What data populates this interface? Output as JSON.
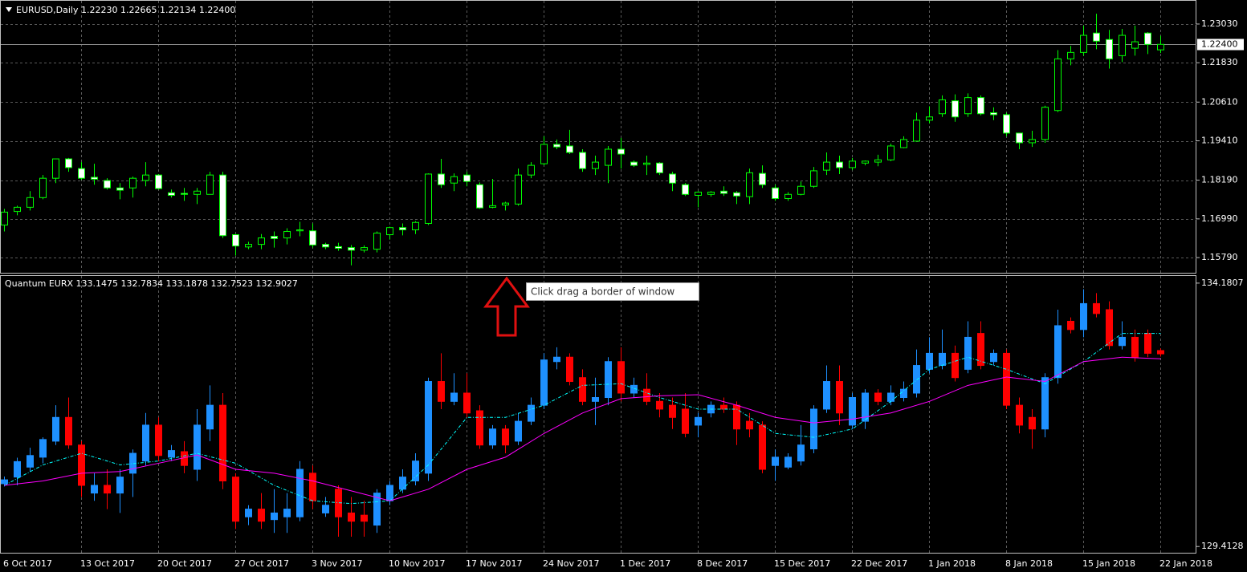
{
  "chart_data": [
    {
      "type": "candlestick",
      "title": "EURUSD,Daily  1.22230 1.22665 1.22134 1.22400",
      "up_color": "#00ff00",
      "down_color": "#ffffff",
      "wick_color": "#00ff00",
      "grid": true,
      "ylim": [
        1.1532,
        1.2375
      ],
      "yticks": [
        {
          "value": 1.2303,
          "label": "1.23030"
        },
        {
          "value": 1.2183,
          "label": "1.21830"
        },
        {
          "value": 1.2061,
          "label": "1.20610"
        },
        {
          "value": 1.1941,
          "label": "1.19410"
        },
        {
          "value": 1.1819,
          "label": "1.18190"
        },
        {
          "value": 1.1699,
          "label": "1.16990"
        },
        {
          "value": 1.1579,
          "label": "1.15790"
        }
      ],
      "last_price": {
        "value": 1.224,
        "label": "1.22400"
      },
      "open": [
        1.168,
        1.1722,
        1.1735,
        1.1765,
        1.1825,
        1.1885,
        1.1855,
        1.1828,
        1.1818,
        1.1795,
        1.1795,
        1.1818,
        1.1835,
        1.178,
        1.1778,
        1.1775,
        1.1775,
        1.1835,
        1.165,
        1.1612,
        1.162,
        1.1645,
        1.164,
        1.1662,
        1.1662,
        1.162,
        1.1613,
        1.161,
        1.1602,
        1.1605,
        1.165,
        1.1672,
        1.1665,
        1.1685,
        1.1838,
        1.181,
        1.1835,
        1.1805,
        1.1735,
        1.1742,
        1.1745,
        1.1835,
        1.187,
        1.193,
        1.1925,
        1.1905,
        1.1855,
        1.1865,
        1.1915,
        1.1875,
        1.1868,
        1.1872,
        1.1838,
        1.1805,
        1.1772,
        1.1775,
        1.1785,
        1.178,
        1.1768,
        1.184,
        1.1795,
        1.1762,
        1.1775,
        1.18,
        1.185,
        1.1875,
        1.1858,
        1.1872,
        1.1875,
        1.1882,
        1.192,
        1.194,
        1.2005,
        1.2025,
        1.2065,
        1.2025,
        1.2075,
        1.2028,
        1.2022,
        1.1965,
        1.1935,
        1.1945,
        1.2035,
        1.2195,
        1.2215,
        1.2275,
        1.2255,
        1.2205,
        1.2228,
        1.2275,
        1.2223
      ],
      "high": [
        1.173,
        1.174,
        1.1785,
        1.1835,
        1.1885,
        1.1888,
        1.1875,
        1.187,
        1.1825,
        1.181,
        1.183,
        1.1875,
        1.1838,
        1.179,
        1.1795,
        1.1795,
        1.1845,
        1.1845,
        1.1652,
        1.1628,
        1.1652,
        1.166,
        1.167,
        1.169,
        1.1685,
        1.1625,
        1.1625,
        1.1618,
        1.1617,
        1.166,
        1.1675,
        1.1685,
        1.1692,
        1.184,
        1.1885,
        1.184,
        1.1845,
        1.1812,
        1.1823,
        1.1752,
        1.1855,
        1.1875,
        1.1955,
        1.1945,
        1.1975,
        1.1915,
        1.1895,
        1.1925,
        1.195,
        1.188,
        1.1895,
        1.1875,
        1.1845,
        1.181,
        1.1785,
        1.1785,
        1.18,
        1.1785,
        1.1855,
        1.1865,
        1.1805,
        1.1782,
        1.1815,
        1.186,
        1.1905,
        1.1895,
        1.1888,
        1.188,
        1.1898,
        1.1932,
        1.1955,
        1.2028,
        1.2048,
        1.2082,
        1.2085,
        1.2088,
        1.2082,
        1.2045,
        1.2028,
        1.1965,
        1.1972,
        1.205,
        1.2222,
        1.2235,
        1.2298,
        1.2335,
        1.2285,
        1.2288,
        1.2298,
        1.2278,
        1.22665
      ],
      "low": [
        1.166,
        1.171,
        1.1725,
        1.176,
        1.181,
        1.1845,
        1.182,
        1.1805,
        1.179,
        1.176,
        1.1765,
        1.18,
        1.179,
        1.1765,
        1.1755,
        1.1745,
        1.1775,
        1.164,
        1.1585,
        1.1605,
        1.1605,
        1.161,
        1.162,
        1.1645,
        1.161,
        1.1605,
        1.16,
        1.1555,
        1.1595,
        1.1595,
        1.1635,
        1.1648,
        1.1652,
        1.168,
        1.1795,
        1.1785,
        1.18,
        1.173,
        1.1732,
        1.1725,
        1.174,
        1.1825,
        1.1865,
        1.1915,
        1.19,
        1.1845,
        1.1835,
        1.181,
        1.1855,
        1.186,
        1.1835,
        1.1835,
        1.1785,
        1.177,
        1.1735,
        1.1768,
        1.177,
        1.1745,
        1.1745,
        1.1795,
        1.1755,
        1.1755,
        1.1772,
        1.1795,
        1.1835,
        1.1838,
        1.185,
        1.1865,
        1.1862,
        1.1878,
        1.1918,
        1.1938,
        1.1995,
        1.2015,
        1.2,
        1.2015,
        1.202,
        1.2005,
        1.1955,
        1.1915,
        1.1922,
        1.1935,
        1.203,
        1.2175,
        1.2205,
        1.2225,
        1.2165,
        1.2185,
        1.2205,
        1.221,
        1.22134
      ],
      "close": [
        1.172,
        1.1735,
        1.1765,
        1.1825,
        1.1885,
        1.1858,
        1.1825,
        1.1822,
        1.1795,
        1.1788,
        1.1825,
        1.1835,
        1.1793,
        1.1772,
        1.1775,
        1.1785,
        1.1835,
        1.1647,
        1.1615,
        1.162,
        1.164,
        1.1638,
        1.166,
        1.1665,
        1.1618,
        1.1612,
        1.1608,
        1.1602,
        1.161,
        1.1655,
        1.1672,
        1.1665,
        1.1688,
        1.1838,
        1.1805,
        1.183,
        1.1815,
        1.1733,
        1.174,
        1.1748,
        1.1835,
        1.1865,
        1.193,
        1.1922,
        1.1905,
        1.1855,
        1.1875,
        1.1915,
        1.19,
        1.1865,
        1.1872,
        1.1842,
        1.181,
        1.1775,
        1.1782,
        1.1782,
        1.1778,
        1.177,
        1.1842,
        1.1805,
        1.1762,
        1.1775,
        1.18,
        1.1848,
        1.1875,
        1.1858,
        1.1878,
        1.1878,
        1.1882,
        1.1925,
        1.1945,
        1.2005,
        1.2015,
        1.2068,
        1.2015,
        1.2075,
        1.2025,
        1.2022,
        1.1965,
        1.1935,
        1.1945,
        1.2045,
        1.2195,
        1.2215,
        1.2268,
        1.225,
        1.2195,
        1.2268,
        1.2248,
        1.224,
        1.224
      ]
    },
    {
      "type": "candlestick",
      "title": "Quantum EURX 133.1475 132.7834 133.1878 132.7523 132.9027",
      "up_color": "#1e90ff",
      "down_color": "#ff0000",
      "ylim": [
        129.3,
        134.31
      ],
      "yticks": [
        134.1807,
        129.4128
      ],
      "categories": [
        "6 Oct 2017",
        null,
        null,
        null,
        null,
        null,
        "13 Oct 2017",
        null,
        null,
        null,
        null,
        null,
        "20 Oct 2017",
        null,
        null,
        null,
        null,
        null,
        "27 Oct 2017",
        null,
        null,
        null,
        null,
        null,
        "3 Nov 2017",
        null,
        null,
        null,
        null,
        null,
        "10 Nov 2017",
        null,
        null,
        null,
        null,
        null,
        "17 Nov 2017",
        null,
        null,
        null,
        null,
        null,
        "24 Nov 2017",
        null,
        null,
        null,
        null,
        null,
        "1 Dec 2017",
        null,
        null,
        null,
        null,
        null,
        "8 Dec 2017",
        null,
        null,
        null,
        null,
        null,
        "15 Dec 2017",
        null,
        null,
        null,
        null,
        null,
        "22 Dec 2017",
        null,
        null,
        null,
        null,
        null,
        "1 Jan 2018",
        null,
        null,
        null,
        null,
        null,
        "8 Jan 2018",
        null,
        null,
        null,
        null,
        null,
        "15 Jan 2018",
        null,
        null,
        null,
        null,
        null,
        "22 Jan 2018"
      ],
      "open": [
        130.55,
        130.67,
        130.85,
        131.03,
        131.32,
        131.75,
        131.25,
        130.38,
        130.52,
        130.38,
        130.74,
        130.96,
        131.61,
        131.03,
        131.13,
        130.81,
        131.54,
        131.97,
        130.67,
        129.95,
        130.09,
        129.9,
        129.95,
        129.95,
        130.74,
        130.02,
        130.45,
        130.02,
        129.98,
        129.8,
        130.24,
        130.45,
        130.6,
        130.74,
        132.4,
        132.04,
        132.19,
        131.87,
        131.25,
        131.54,
        131.32,
        131.68,
        131.97,
        132.76,
        132.84,
        132.47,
        132.04,
        132.11,
        132.76,
        132.19,
        132.26,
        132.04,
        131.97,
        131.9,
        131.61,
        131.83,
        131.97,
        131.97,
        131.68,
        131.61,
        130.88,
        130.85,
        130.96,
        131.18,
        131.9,
        132.4,
        131.61,
        131.68,
        132.19,
        132.04,
        132.11,
        132.19,
        132.62,
        132.69,
        132.91,
        132.62,
        133.27,
        132.76,
        132.91,
        131.97,
        131.75,
        131.54,
        132.47,
        133.49,
        133.34,
        133.81,
        133.7,
        133.05,
        133.2,
        133.27,
        132.96
      ],
      "high": [
        130.68,
        131.02,
        131.2,
        131.39,
        131.97,
        132.11,
        131.32,
        130.74,
        130.81,
        130.81,
        131.17,
        131.83,
        131.75,
        131.25,
        131.32,
        131.9,
        132.33,
        132.19,
        130.74,
        130.16,
        130.38,
        130.45,
        130.38,
        130.96,
        130.88,
        130.31,
        130.52,
        130.31,
        130.24,
        130.45,
        130.6,
        130.81,
        131.1,
        132.47,
        132.91,
        132.55,
        132.55,
        131.97,
        131.61,
        131.61,
        131.83,
        132.11,
        132.91,
        133.02,
        132.91,
        132.62,
        132.47,
        132.84,
        133.02,
        132.47,
        132.55,
        132.19,
        132.11,
        132.19,
        131.83,
        132.04,
        132.11,
        132.04,
        131.83,
        131.68,
        131.17,
        131.1,
        131.61,
        131.97,
        132.69,
        132.69,
        132.19,
        132.26,
        132.26,
        132.33,
        132.4,
        132.98,
        133.2,
        133.34,
        133.05,
        133.49,
        133.49,
        132.98,
        132.98,
        132.11,
        131.9,
        132.55,
        133.7,
        133.56,
        134.07,
        134.0,
        133.85,
        133.49,
        133.34,
        133.34,
        133.0
      ],
      "low": [
        130.5,
        130.52,
        130.77,
        130.92,
        131.25,
        131.18,
        130.31,
        130.24,
        130.09,
        130.02,
        130.31,
        130.88,
        130.96,
        130.96,
        130.74,
        130.6,
        131.32,
        130.45,
        129.73,
        129.8,
        129.73,
        129.66,
        129.66,
        129.87,
        130.09,
        129.95,
        129.59,
        129.59,
        129.59,
        129.66,
        130.16,
        130.38,
        130.52,
        130.6,
        131.9,
        131.97,
        131.75,
        131.18,
        131.18,
        131.1,
        131.25,
        131.61,
        131.9,
        132.62,
        132.33,
        131.97,
        131.61,
        131.97,
        132.04,
        132.11,
        131.97,
        131.75,
        131.54,
        131.39,
        131.39,
        131.75,
        131.83,
        131.25,
        131.39,
        130.74,
        130.6,
        130.81,
        130.88,
        131.1,
        131.83,
        131.61,
        131.54,
        131.54,
        131.97,
        131.97,
        132.04,
        132.11,
        132.55,
        132.62,
        132.4,
        132.55,
        132.62,
        132.69,
        131.9,
        131.46,
        131.18,
        131.39,
        132.36,
        133.27,
        133.2,
        133.56,
        132.98,
        132.98,
        132.76,
        132.84,
        132.85
      ],
      "close": [
        130.62,
        130.95,
        131.06,
        131.35,
        131.75,
        131.25,
        130.52,
        130.52,
        130.38,
        130.67,
        131.1,
        131.61,
        131.06,
        131.15,
        130.88,
        131.61,
        131.97,
        130.6,
        129.87,
        130.09,
        129.87,
        130.02,
        130.09,
        130.81,
        130.24,
        130.16,
        129.95,
        129.87,
        129.87,
        130.38,
        130.52,
        130.67,
        130.96,
        132.4,
        132.04,
        132.19,
        131.83,
        131.25,
        131.54,
        131.25,
        131.68,
        131.97,
        132.79,
        132.84,
        132.4,
        132.04,
        132.11,
        132.76,
        132.19,
        132.33,
        132.04,
        131.9,
        131.75,
        131.46,
        131.75,
        131.97,
        131.9,
        131.54,
        131.54,
        130.81,
        131.03,
        131.03,
        131.25,
        131.9,
        132.4,
        131.83,
        132.11,
        132.19,
        132.04,
        132.19,
        132.26,
        132.69,
        132.91,
        132.91,
        132.47,
        133.2,
        132.69,
        132.91,
        131.97,
        131.61,
        131.54,
        132.47,
        133.41,
        133.34,
        133.81,
        133.63,
        133.05,
        133.2,
        132.84,
        132.91,
        132.9
      ],
      "series": [
        {
          "color": "#00ffff",
          "dashed": true,
          "x": [
            0,
            3,
            6,
            9,
            12,
            15,
            18,
            21,
            24,
            27,
            30,
            33,
            36,
            39,
            42,
            45,
            48,
            51,
            54,
            57,
            60,
            63,
            66,
            69,
            72,
            75,
            78,
            81,
            84,
            87,
            90
          ],
          "values": [
            130.52,
            130.89,
            131.1,
            130.89,
            130.96,
            131.1,
            130.92,
            130.52,
            130.24,
            130.19,
            130.24,
            130.89,
            131.75,
            131.75,
            131.97,
            132.33,
            132.36,
            132.11,
            131.9,
            131.9,
            131.46,
            131.39,
            131.54,
            132.04,
            132.62,
            132.84,
            132.62,
            132.36,
            132.76,
            133.27,
            133.27
          ]
        },
        {
          "color": "#ff00ff",
          "dashed": false,
          "x": [
            0,
            3,
            6,
            9,
            12,
            15,
            18,
            21,
            24,
            27,
            30,
            33,
            36,
            39,
            42,
            45,
            48,
            51,
            54,
            57,
            60,
            63,
            66,
            69,
            72,
            75,
            78,
            81,
            84,
            87,
            90
          ],
          "values": [
            130.52,
            130.6,
            130.74,
            130.77,
            130.92,
            131.07,
            130.81,
            130.74,
            130.6,
            130.42,
            130.24,
            130.45,
            130.81,
            131.03,
            131.46,
            131.83,
            132.09,
            132.14,
            132.16,
            131.97,
            131.75,
            131.65,
            131.72,
            131.83,
            132.04,
            132.33,
            132.48,
            132.4,
            132.76,
            132.84,
            132.81
          ]
        }
      ]
    }
  ],
  "tooltip": "Click  drag a border of window"
}
